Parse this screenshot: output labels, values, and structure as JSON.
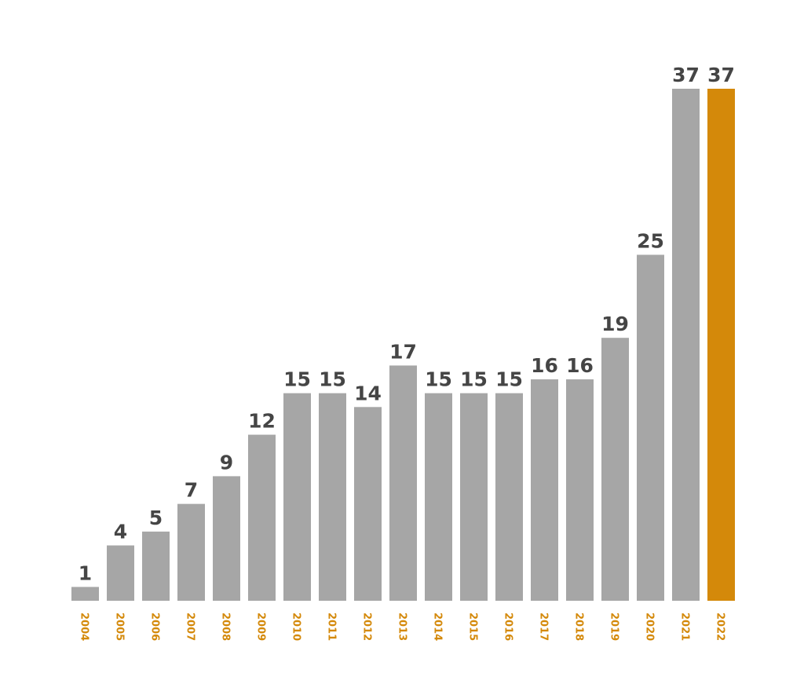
{
  "chart_data": {
    "type": "bar",
    "title": "",
    "xlabel": "",
    "ylabel": "",
    "categories": [
      "2004",
      "2005",
      "2006",
      "2007",
      "2008",
      "2009",
      "2010",
      "2011",
      "2012",
      "2013",
      "2014",
      "2015",
      "2016",
      "2017",
      "2018",
      "2019",
      "2020",
      "2021",
      "2022"
    ],
    "values": [
      1,
      4,
      5,
      7,
      9,
      12,
      15,
      15,
      14,
      17,
      15,
      15,
      15,
      16,
      16,
      19,
      25,
      37,
      37
    ],
    "ylim": [
      0,
      37
    ],
    "grid": false,
    "data_labels": true,
    "highlight_category": "2022",
    "colors": {
      "bar": "#A6A6A6",
      "highlight": "#D4890A",
      "tick_label": "#D4890A",
      "value_label": "#454545"
    }
  }
}
